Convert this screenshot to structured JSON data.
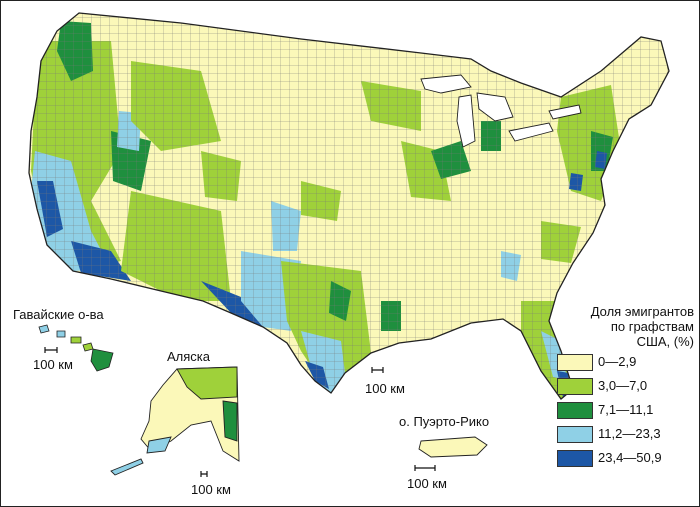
{
  "legend": {
    "title_line1": "Доля эмигрантов",
    "title_line2": "по графствам",
    "title_line3": "США, (%)",
    "classes": [
      {
        "range": "0—2,9",
        "color": "#fbf8b9"
      },
      {
        "range": "3,0—7,0",
        "color": "#9fd13a"
      },
      {
        "range": "7,1—11,1",
        "color": "#1f8f3e"
      },
      {
        "range": "11,2—23,3",
        "color": "#8fd0e6"
      },
      {
        "range": "23,4—50,9",
        "color": "#1d57a6"
      }
    ]
  },
  "labels": {
    "hawaii": "Гавайские о-ва",
    "alaska": "Аляска",
    "puerto_rico": "о. Пуэрто-Рико"
  },
  "scale_bars": {
    "hawaii": "100 км",
    "alaska": "100 км",
    "mainland": "100 км",
    "puerto_rico": "100 км"
  },
  "colors": {
    "county_border": "#555555",
    "outline": "#222222",
    "water": "#ffffff"
  }
}
